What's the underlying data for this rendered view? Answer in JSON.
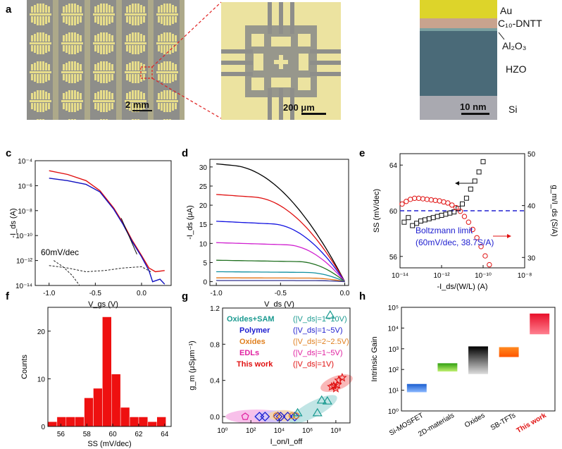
{
  "panel_labels": {
    "a": "a",
    "b": "b",
    "c": "c",
    "d": "d",
    "e": "e",
    "f": "f",
    "g": "g",
    "h": "h"
  },
  "panel_a": {
    "scale_left": "2 mm",
    "scale_right": "200 μm"
  },
  "panel_b": {
    "layers": [
      "Au",
      "C₁₀-DNTT",
      "Al₂O₃",
      "HZO",
      "Si"
    ],
    "scale": "10 nm"
  },
  "chart_data": [
    {
      "id": "c",
      "type": "line",
      "xlabel": "V_gs (V)",
      "ylabel": "-I_ds (A)",
      "xlim": [
        -1.15,
        0.32
      ],
      "ylim_log10": [
        -14,
        -4
      ],
      "x_ticks": [
        "-1.0",
        "-0.5",
        "0.0"
      ],
      "y_ticks": [
        "10⁻⁴",
        "10⁻⁶",
        "10⁻⁸",
        "10⁻¹⁰",
        "10⁻¹²",
        "10⁻¹⁴"
      ],
      "annotation": "60mV/dec",
      "series": [
        {
          "color": "#e01010",
          "points": [
            [
              -1.0,
              -4.8
            ],
            [
              -0.8,
              -5.1
            ],
            [
              -0.6,
              -5.6
            ],
            [
              -0.45,
              -6.4
            ],
            [
              -0.3,
              -7.8
            ],
            [
              -0.2,
              -9.0
            ],
            [
              -0.1,
              -10.4
            ],
            [
              0.0,
              -11.6
            ],
            [
              0.08,
              -12.6
            ],
            [
              0.15,
              -12.9
            ],
            [
              0.25,
              -12.8
            ]
          ]
        },
        {
          "color": "#1010c0",
          "points": [
            [
              -1.0,
              -5.4
            ],
            [
              -0.8,
              -5.6
            ],
            [
              -0.6,
              -5.9
            ],
            [
              -0.45,
              -6.5
            ],
            [
              -0.3,
              -7.9
            ],
            [
              -0.2,
              -9.1
            ],
            [
              -0.1,
              -10.5
            ],
            [
              0.0,
              -11.7
            ],
            [
              0.08,
              -12.8
            ],
            [
              0.12,
              -13.7
            ],
            [
              0.2,
              -13.5
            ],
            [
              0.25,
              -13.9
            ]
          ]
        },
        {
          "color": "#222222",
          "dashed": true,
          "points": [
            [
              -1.0,
              -12.4
            ],
            [
              -0.8,
              -12.6
            ],
            [
              -0.6,
              -12.9
            ],
            [
              -0.4,
              -12.8
            ],
            [
              -0.2,
              -12.6
            ],
            [
              0.0,
              -12.5
            ],
            [
              0.1,
              -12.9
            ]
          ]
        },
        {
          "color": "#222222",
          "dashed": true,
          "points": [
            [
              -0.95,
              -12.0
            ],
            [
              -0.85,
              -12.5
            ],
            [
              -0.75,
              -13.2
            ],
            [
              -0.67,
              -14.0
            ]
          ]
        }
      ]
    },
    {
      "id": "d",
      "type": "line",
      "xlabel": "V_ds (V)",
      "ylabel": "-I_ds (μA)",
      "xlim": [
        -1.05,
        0.03
      ],
      "ylim": [
        -1,
        32
      ],
      "x_ticks": [
        "-1.0",
        "-0.5",
        "0.0"
      ],
      "y_ticks": [
        "0",
        "5",
        "10",
        "15",
        "20",
        "25",
        "30"
      ],
      "series": [
        {
          "color": "#000000",
          "isat": 30.8
        },
        {
          "color": "#e01010",
          "isat": 22.8
        },
        {
          "color": "#1010e0",
          "isat": 15.8
        },
        {
          "color": "#d020d0",
          "isat": 10.2
        },
        {
          "color": "#207020",
          "isat": 5.6
        },
        {
          "color": "#1090a0",
          "isat": 2.6
        },
        {
          "color": "#e07010",
          "isat": 1.0
        },
        {
          "color": "#303090",
          "isat": 0.3
        }
      ]
    },
    {
      "id": "e",
      "type": "scatter",
      "xlabel": "-I_ds/(W/L) (A)",
      "ylabel": "SS (mV/dec)",
      "ylabel_right": "g_m/I_ds (S/A)",
      "xlim_log10": [
        -14,
        -8
      ],
      "ylim": [
        55,
        65
      ],
      "y2lim": [
        28,
        50
      ],
      "x_ticks": [
        "10⁻¹⁴",
        "10⁻¹²",
        "10⁻¹⁰",
        "10⁻⁸"
      ],
      "y_ticks": [
        "56",
        "60",
        "64"
      ],
      "y2_ticks": [
        "30",
        "40",
        "50"
      ],
      "reference_line": {
        "y": 60,
        "color": "#2020d0"
      },
      "annotation": [
        "Boltzmann limit",
        "(60mV/dec, 38.7S/A)"
      ],
      "ss_points": [
        [
          -13.8,
          59.0
        ],
        [
          -13.6,
          59.4
        ],
        [
          -13.4,
          58.7
        ],
        [
          -13.2,
          58.9
        ],
        [
          -13.0,
          59.1
        ],
        [
          -12.8,
          59.2
        ],
        [
          -12.6,
          59.3
        ],
        [
          -12.4,
          59.4
        ],
        [
          -12.2,
          59.5
        ],
        [
          -12.0,
          59.6
        ],
        [
          -11.8,
          59.7
        ],
        [
          -11.6,
          59.8
        ],
        [
          -11.4,
          59.9
        ],
        [
          -11.2,
          60.2
        ],
        [
          -11.0,
          60.6
        ],
        [
          -10.8,
          61.1
        ],
        [
          -10.6,
          61.9
        ],
        [
          -10.4,
          62.6
        ],
        [
          -10.2,
          63.4
        ],
        [
          -10.0,
          64.3
        ]
      ],
      "gm_points": [
        [
          -13.9,
          40.3
        ],
        [
          -13.7,
          40.8
        ],
        [
          -13.5,
          41.2
        ],
        [
          -13.3,
          41.4
        ],
        [
          -13.1,
          41.4
        ],
        [
          -12.9,
          41.3
        ],
        [
          -12.7,
          41.2
        ],
        [
          -12.5,
          41.1
        ],
        [
          -12.3,
          41.0
        ],
        [
          -12.1,
          40.9
        ],
        [
          -11.9,
          40.7
        ],
        [
          -11.7,
          40.5
        ],
        [
          -11.5,
          40.1
        ],
        [
          -11.3,
          39.6
        ],
        [
          -11.1,
          38.9
        ],
        [
          -10.9,
          37.9
        ],
        [
          -10.7,
          36.8
        ],
        [
          -10.5,
          35.4
        ],
        [
          -10.3,
          33.8
        ],
        [
          -10.1,
          32.1
        ],
        [
          -9.9,
          30.3
        ],
        [
          -9.7,
          28.6
        ]
      ]
    },
    {
      "id": "f",
      "type": "bar",
      "xlabel": "SS (mV/dec)",
      "ylabel": "Counts",
      "xlim": [
        55,
        64.5
      ],
      "ylim": [
        0,
        25
      ],
      "x_ticks": [
        "56",
        "58",
        "60",
        "62",
        "64"
      ],
      "y_ticks": [
        "0",
        "10",
        "20"
      ],
      "bins": [
        [
          55,
          1
        ],
        [
          55.7,
          2
        ],
        [
          56.4,
          2
        ],
        [
          57.1,
          2
        ],
        [
          57.8,
          6
        ],
        [
          58.5,
          8
        ],
        [
          59.2,
          23
        ],
        [
          59.9,
          11
        ],
        [
          60.6,
          4
        ],
        [
          61.3,
          2
        ],
        [
          62.0,
          2
        ],
        [
          62.7,
          1
        ],
        [
          63.4,
          2
        ]
      ],
      "bin_width": 0.7,
      "color": "#ee1010"
    },
    {
      "id": "g",
      "type": "scatter",
      "xlabel": "I_on/I_off",
      "ylabel": "g_m (μSμm⁻¹)",
      "xlim_log10": [
        0,
        9
      ],
      "ylim": [
        -0.07,
        1.2
      ],
      "x_ticks": [
        "10⁰",
        "10²",
        "10⁴",
        "10⁶",
        "10⁸"
      ],
      "y_ticks": [
        "0.0",
        "0.4",
        "0.8",
        "1.2"
      ],
      "legend": [
        {
          "name": "Oxides+SAM",
          "range": "(|V_ds|=1~10V)",
          "color": "#1a9a90"
        },
        {
          "name": "Polymer",
          "range": "(|V_ds|=1~5V)",
          "color": "#2020d0"
        },
        {
          "name": "Oxides",
          "range": "(|V_ds|=2~2.5V)",
          "color": "#e08020"
        },
        {
          "name": "EDLs",
          "range": "(|V_ds|=1~5V)",
          "color": "#e020a0"
        },
        {
          "name": "This work",
          "range": "(|V_ds|=1V)",
          "color": "#e01010"
        }
      ],
      "triangles": [
        [
          5.3,
          0.04
        ],
        [
          6.7,
          0.04
        ],
        [
          7.0,
          0.18
        ],
        [
          7.4,
          0.17
        ],
        [
          7.6,
          1.12
        ]
      ],
      "diamonds": [
        [
          2.6,
          0.0
        ],
        [
          3.0,
          0.0
        ],
        [
          3.9,
          0.0
        ],
        [
          4.1,
          0.0
        ],
        [
          4.6,
          0.0
        ],
        [
          5.1,
          0.0
        ]
      ],
      "circles": [
        [
          3.8,
          0.01
        ],
        [
          4.9,
          0.01
        ],
        [
          5.2,
          0.01
        ]
      ],
      "pentagon": [
        [
          1.6,
          0.0
        ]
      ],
      "stars": [
        [
          7.7,
          0.33
        ],
        [
          7.85,
          0.34
        ],
        [
          8.0,
          0.31
        ],
        [
          8.1,
          0.35
        ],
        [
          8.2,
          0.4
        ],
        [
          8.45,
          0.43
        ]
      ]
    },
    {
      "id": "h",
      "type": "bar",
      "ylabel": "Intrinsic Gain",
      "ylim_log10": [
        0,
        5
      ],
      "y_ticks": [
        "10⁰",
        "10¹",
        "10²",
        "10³",
        "10⁴",
        "10⁵"
      ],
      "categories": [
        "Si-MOSFET",
        "2D-materials",
        "Oxides",
        "SB-TFTs",
        "This work"
      ],
      "ranges": [
        [
          8,
          20
        ],
        [
          80,
          200
        ],
        [
          60,
          1300
        ],
        [
          400,
          1200
        ],
        [
          5000,
          50000
        ]
      ],
      "colors": [
        "#2a6ad0",
        "#2aa010",
        "#505050",
        "#f06010",
        "#e81020"
      ]
    }
  ]
}
